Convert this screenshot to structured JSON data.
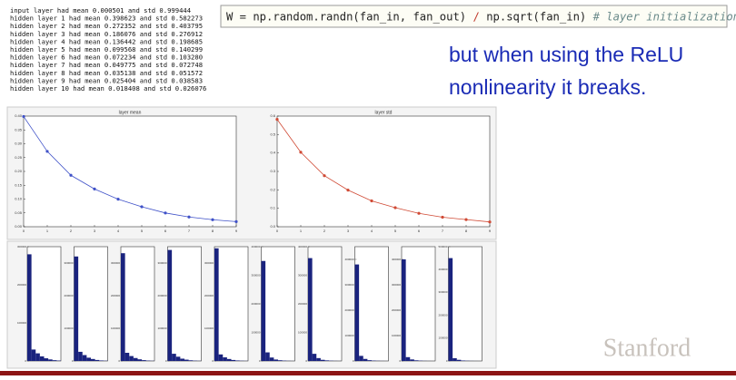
{
  "console": {
    "lines": [
      "input layer had mean 0.000501 and std 0.999444",
      "hidden layer 1 had mean 0.398623 and std 0.582273",
      "hidden layer 2 had mean 0.272352 and std 0.403795",
      "hidden layer 3 had mean 0.186076 and std 0.276912",
      "hidden layer 4 had mean 0.136442 and std 0.198685",
      "hidden layer 5 had mean 0.099568 and std 0.140299",
      "hidden layer 6 had mean 0.072234 and std 0.103280",
      "hidden layer 7 had mean 0.049775 and std 0.072748",
      "hidden layer 8 had mean 0.035138 and std 0.051572",
      "hidden layer 9 had mean 0.025404 and std 0.038583",
      "hidden layer 10 had mean 0.018408 and std 0.026076"
    ]
  },
  "code": {
    "expr": "W = np.random.randn(fan_in, fan_out)",
    "op": "/",
    "expr2": "np.sqrt(fan_in)",
    "comment": "# layer initialization"
  },
  "caption": [
    "but when using the ReLU",
    "nonlinearity it breaks."
  ],
  "logo": "Stanford",
  "chart_data": [
    {
      "type": "line",
      "title": "layer mean",
      "color": "#3f51c8",
      "x": [
        0,
        1,
        2,
        3,
        4,
        5,
        6,
        7,
        8,
        9
      ],
      "values": [
        0.398623,
        0.272352,
        0.186076,
        0.136442,
        0.099568,
        0.072234,
        0.049775,
        0.035138,
        0.025404,
        0.018408
      ],
      "xlim": [
        0,
        9
      ],
      "xticks": [
        0,
        1,
        2,
        3,
        4,
        5,
        6,
        7,
        8,
        9
      ],
      "ylim": [
        0,
        0.4
      ],
      "yticks": [
        {
          "value": 0,
          "label": "0.00"
        },
        0.05,
        {
          "value": 0.1,
          "label": "0.10"
        },
        0.15,
        {
          "value": 0.2,
          "label": "0.20"
        },
        0.25,
        {
          "value": 0.3,
          "label": "0.30"
        },
        0.35,
        {
          "value": 0.4,
          "label": "0.40"
        }
      ]
    },
    {
      "type": "line",
      "title": "layer std",
      "color": "#d04a35",
      "x": [
        0,
        1,
        2,
        3,
        4,
        5,
        6,
        7,
        8,
        9
      ],
      "values": [
        0.582273,
        0.403795,
        0.276912,
        0.198685,
        0.140299,
        0.10328,
        0.072748,
        0.051572,
        0.038583,
        0.026076
      ],
      "xlim": [
        0,
        9
      ],
      "xticks": [
        0,
        1,
        2,
        3,
        4,
        5,
        6,
        7,
        8,
        9
      ],
      "ylim": [
        0,
        0.6
      ],
      "yticks": [
        {
          "value": 0,
          "label": "0.0"
        },
        0.1,
        0.2,
        0.3,
        0.4,
        0.5,
        0.6
      ]
    },
    {
      "type": "histogram",
      "color": "#1a237e",
      "bins": [
        0,
        0.5,
        1,
        1.5,
        2,
        2.5,
        3,
        3.5,
        4
      ],
      "values": [
        280000,
        30000,
        20000,
        12000,
        7000,
        4000,
        2000,
        1000
      ],
      "ylim": [
        0,
        300000
      ],
      "yticks": [
        0,
        100000,
        200000,
        300000
      ]
    },
    {
      "type": "histogram",
      "color": "#1a237e",
      "bins": [
        0,
        0.35,
        0.7,
        1.05,
        1.4,
        1.75,
        2.1,
        2.45,
        2.8
      ],
      "values": [
        320000,
        28000,
        18000,
        10000,
        6000,
        3000,
        1500,
        700
      ],
      "ylim": [
        0,
        350000
      ],
      "yticks": [
        0,
        100000,
        200000,
        300000
      ]
    },
    {
      "type": "histogram",
      "color": "#1a237e",
      "bins": [
        0,
        0.25,
        0.5,
        0.75,
        1,
        1.25,
        1.5,
        1.75,
        2
      ],
      "values": [
        330000,
        25000,
        15000,
        9000,
        5000,
        2500,
        1200,
        500
      ],
      "ylim": [
        0,
        350000
      ],
      "yticks": [
        0,
        100000,
        200000,
        300000
      ]
    },
    {
      "type": "histogram",
      "color": "#1a237e",
      "bins": [
        0,
        0.2,
        0.4,
        0.6,
        0.8,
        1,
        1.2,
        1.4,
        1.6
      ],
      "values": [
        340000,
        22000,
        13000,
        7000,
        4000,
        2000,
        900,
        400
      ],
      "ylim": [
        0,
        350000
      ],
      "yticks": [
        0,
        100000,
        200000,
        300000
      ]
    },
    {
      "type": "histogram",
      "color": "#1a237e",
      "bins": [
        0,
        0.15,
        0.3,
        0.45,
        0.6,
        0.75,
        0.9,
        1.05,
        1.2
      ],
      "values": [
        345000,
        20000,
        11000,
        6000,
        3000,
        1500,
        700,
        300
      ],
      "ylim": [
        0,
        350000
      ],
      "yticks": [
        0,
        100000,
        200000,
        300000
      ]
    },
    {
      "type": "histogram",
      "color": "#1a237e",
      "bins": [
        0,
        0.1,
        0.2,
        0.3,
        0.4,
        0.5,
        0.6,
        0.7,
        0.8
      ],
      "values": [
        350000,
        30000,
        12000,
        5000,
        2500,
        1200,
        500,
        200
      ],
      "ylim": [
        0,
        400000
      ],
      "yticks": [
        0,
        100000,
        200000,
        300000,
        400000
      ]
    },
    {
      "type": "histogram",
      "color": "#1a237e",
      "bins": [
        0,
        0.08,
        0.16,
        0.24,
        0.32,
        0.4,
        0.48,
        0.56,
        0.64
      ],
      "values": [
        360000,
        25000,
        10000,
        4000,
        2000,
        900,
        400,
        150
      ],
      "ylim": [
        0,
        400000
      ],
      "yticks": [
        0,
        100000,
        200000,
        300000,
        400000
      ]
    },
    {
      "type": "histogram",
      "color": "#1a237e",
      "bins": [
        0,
        0.05,
        0.1,
        0.15,
        0.2,
        0.25,
        0.3,
        0.35,
        0.4
      ],
      "values": [
        380000,
        20000,
        8000,
        3000,
        1500,
        700,
        300,
        100
      ],
      "ylim": [
        0,
        450000
      ],
      "yticks": [
        0,
        100000,
        200000,
        300000,
        400000
      ]
    },
    {
      "type": "histogram",
      "color": "#1a237e",
      "bins": [
        0,
        0.04,
        0.08,
        0.12,
        0.16,
        0.2,
        0.24,
        0.28,
        0.32
      ],
      "values": [
        400000,
        15000,
        6000,
        2500,
        1200,
        500,
        200,
        80
      ],
      "ylim": [
        0,
        450000
      ],
      "yticks": [
        0,
        100000,
        200000,
        300000,
        400000
      ]
    },
    {
      "type": "histogram",
      "color": "#1a237e",
      "bins": [
        0,
        0.03,
        0.06,
        0.09,
        0.12,
        0.15,
        0.18,
        0.21,
        0.24
      ],
      "values": [
        450000,
        12000,
        5000,
        2000,
        900,
        400,
        150,
        50
      ],
      "ylim": [
        0,
        500000
      ],
      "yticks": [
        0,
        100000,
        200000,
        300000,
        400000,
        500000
      ]
    }
  ]
}
